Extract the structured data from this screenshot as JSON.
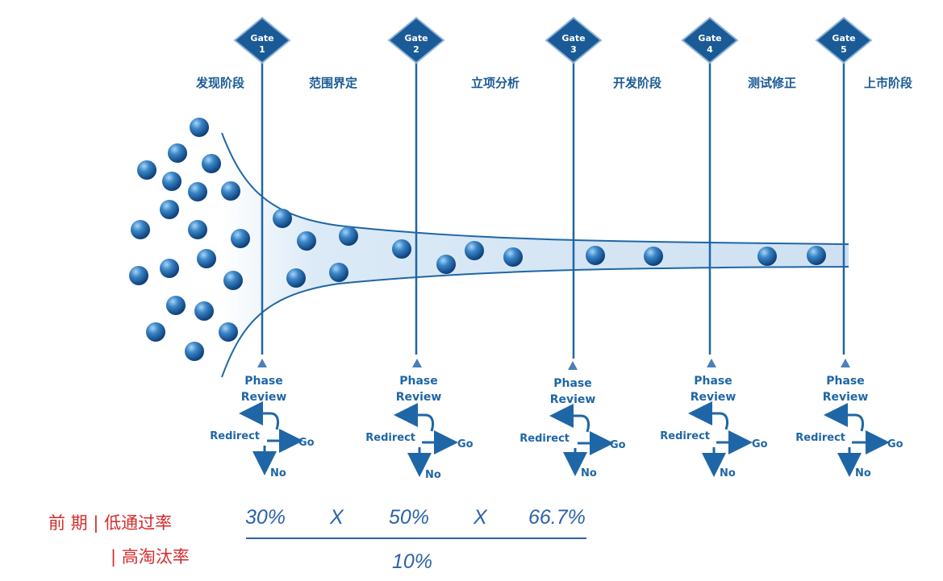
{
  "gates": [
    {
      "title": "Gate",
      "number": "1"
    },
    {
      "title": "Gate",
      "number": "2"
    },
    {
      "title": "Gate",
      "number": "3"
    },
    {
      "title": "Gate",
      "number": "4"
    },
    {
      "title": "Gate",
      "number": "5"
    }
  ],
  "stages": [
    "发现阶段",
    "范围界定",
    "立项分析",
    "开发阶段",
    "测试修正",
    "上市阶段"
  ],
  "review": {
    "line1": "Phase",
    "line2": "Review",
    "redirect": "Redirect",
    "go": "Go",
    "no": "No"
  },
  "annotation": {
    "line1": "前  期 | 低通过率",
    "line2": "| 高淘汰率"
  },
  "formula": {
    "rate1": "30%",
    "times1": "X",
    "rate2": "50%",
    "times2": "X",
    "rate3": "66.7%",
    "result": "10%"
  },
  "colors": {
    "primary": "#1f66a6",
    "accent_red": "#d42b2b",
    "funnel_fill": "#c9ddf0"
  }
}
